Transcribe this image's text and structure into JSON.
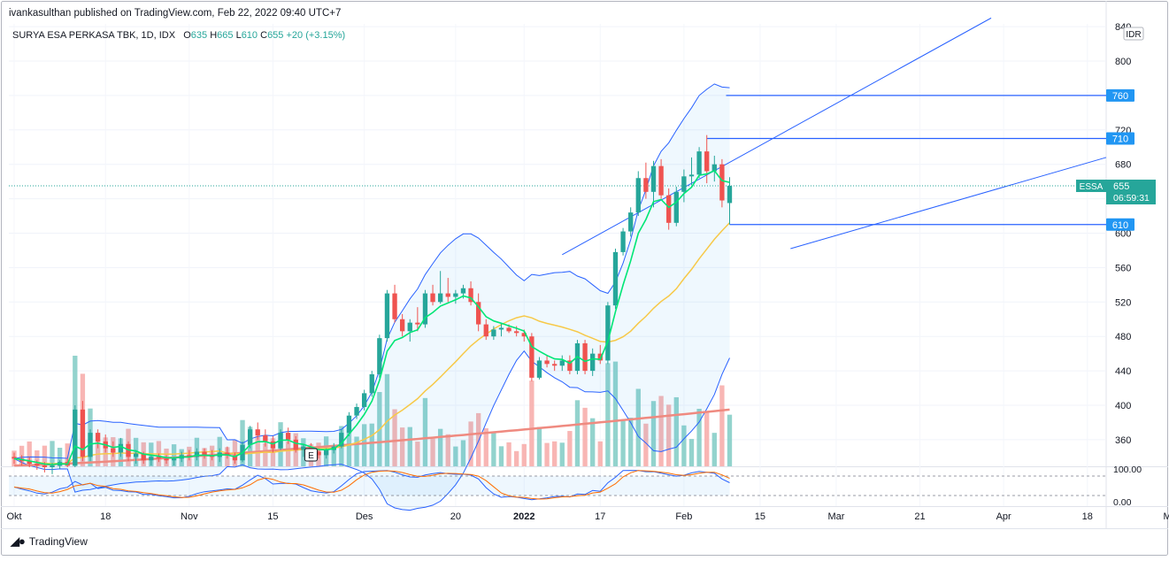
{
  "header": {
    "published": "ivankasulthan published on TradingView.com, Feb 22, 2022 09:40 UTC+7"
  },
  "legend": {
    "symbol": "SURYA ESA PERKASA TBK, 1D, IDX",
    "open_label": "O",
    "open": "635",
    "high_label": "H",
    "high": "665",
    "low_label": "L",
    "low": "610",
    "close_label": "C",
    "close": "655",
    "change": "+20 (+3.15%)"
  },
  "price_scale": {
    "currency": "IDR",
    "ticker": "ESSA",
    "last_price": "655",
    "countdown": "06:59:31",
    "levels": [
      {
        "label": "760",
        "value": 760
      },
      {
        "label": "710",
        "value": 710
      },
      {
        "label": "610",
        "value": 610
      }
    ]
  },
  "osc_scale": [
    "100.00",
    "0.00"
  ],
  "footer": {
    "brand": "TradingView"
  },
  "colors": {
    "up": "#26a69a",
    "down": "#ef5350",
    "level": "#2962ff",
    "bb": "#2962ff",
    "ema_fast": "#00e676",
    "ma_slow": "#f7c948",
    "ma_long": "#ef8a80"
  },
  "chart_data": {
    "type": "candlestick",
    "title": "SURYA ESA PERKASA TBK, 1D, IDX",
    "y_ticks": [
      840,
      800,
      760,
      720,
      680,
      640,
      600,
      560,
      520,
      480,
      440,
      400,
      360
    ],
    "x_ticks": [
      "Okt",
      "18",
      "Nov",
      "15",
      "Des",
      "20",
      "2022",
      "17",
      "Feb",
      "15",
      "Mar",
      "21",
      "Apr",
      "18",
      "Mei"
    ],
    "annotations": [
      {
        "label": "E"
      }
    ],
    "candles": [
      [
        340,
        345,
        332,
        338
      ],
      [
        338,
        342,
        330,
        335
      ],
      [
        335,
        340,
        328,
        332
      ],
      [
        332,
        336,
        325,
        330
      ],
      [
        330,
        334,
        322,
        328
      ],
      [
        328,
        333,
        320,
        330
      ],
      [
        330,
        336,
        326,
        334
      ],
      [
        334,
        338,
        328,
        330
      ],
      [
        330,
        400,
        328,
        395
      ],
      [
        395,
        405,
        335,
        340
      ],
      [
        340,
        372,
        335,
        368
      ],
      [
        368,
        372,
        350,
        358
      ],
      [
        358,
        366,
        345,
        350
      ],
      [
        350,
        358,
        340,
        345
      ],
      [
        345,
        362,
        340,
        355
      ],
      [
        355,
        358,
        335,
        340
      ],
      [
        340,
        348,
        332,
        344
      ],
      [
        344,
        346,
        332,
        336
      ],
      [
        336,
        342,
        330,
        340
      ],
      [
        340,
        344,
        334,
        338
      ],
      [
        338,
        342,
        332,
        336
      ],
      [
        336,
        340,
        330,
        338
      ],
      [
        338,
        346,
        334,
        342
      ],
      [
        342,
        348,
        336,
        340
      ],
      [
        340,
        350,
        336,
        346
      ],
      [
        346,
        350,
        338,
        342
      ],
      [
        342,
        348,
        336,
        340
      ],
      [
        340,
        350,
        334,
        345
      ],
      [
        345,
        352,
        338,
        342
      ],
      [
        342,
        345,
        332,
        336
      ],
      [
        336,
        358,
        334,
        354
      ],
      [
        354,
        376,
        350,
        372
      ],
      [
        372,
        380,
        360,
        365
      ],
      [
        365,
        372,
        352,
        358
      ],
      [
        358,
        364,
        345,
        350
      ],
      [
        350,
        372,
        348,
        368
      ],
      [
        368,
        374,
        355,
        360
      ],
      [
        360,
        364,
        345,
        348
      ],
      [
        348,
        355,
        340,
        352
      ],
      [
        352,
        356,
        342,
        346
      ],
      [
        346,
        350,
        338,
        342
      ],
      [
        342,
        350,
        338,
        348
      ],
      [
        348,
        356,
        344,
        352
      ],
      [
        352,
        372,
        350,
        368
      ],
      [
        368,
        392,
        364,
        388
      ],
      [
        388,
        402,
        384,
        398
      ],
      [
        398,
        418,
        394,
        414
      ],
      [
        414,
        440,
        410,
        436
      ],
      [
        436,
        482,
        432,
        478
      ],
      [
        478,
        534,
        474,
        530
      ],
      [
        530,
        540,
        496,
        500
      ],
      [
        500,
        506,
        480,
        486
      ],
      [
        486,
        500,
        474,
        496
      ],
      [
        496,
        514,
        486,
        494
      ],
      [
        494,
        534,
        490,
        530
      ],
      [
        530,
        540,
        516,
        520
      ],
      [
        520,
        556,
        518,
        530
      ],
      [
        530,
        548,
        520,
        526
      ],
      [
        526,
        534,
        518,
        530
      ],
      [
        530,
        540,
        524,
        536
      ],
      [
        536,
        544,
        516,
        520
      ],
      [
        520,
        530,
        486,
        494
      ],
      [
        494,
        500,
        476,
        480
      ],
      [
        480,
        492,
        476,
        488
      ],
      [
        488,
        496,
        480,
        490
      ],
      [
        490,
        494,
        484,
        486
      ],
      [
        486,
        492,
        480,
        484
      ],
      [
        484,
        488,
        474,
        480
      ],
      [
        480,
        484,
        428,
        432
      ],
      [
        432,
        456,
        430,
        452
      ],
      [
        452,
        458,
        444,
        448
      ],
      [
        448,
        452,
        440,
        446
      ],
      [
        446,
        458,
        440,
        452
      ],
      [
        452,
        458,
        436,
        440
      ],
      [
        440,
        476,
        436,
        472
      ],
      [
        472,
        476,
        436,
        440
      ],
      [
        440,
        466,
        434,
        460
      ],
      [
        460,
        470,
        448,
        452
      ],
      [
        452,
        520,
        448,
        516
      ],
      [
        516,
        582,
        512,
        578
      ],
      [
        578,
        606,
        574,
        602
      ],
      [
        602,
        630,
        596,
        624
      ],
      [
        624,
        672,
        620,
        664
      ],
      [
        664,
        682,
        640,
        648
      ],
      [
        648,
        684,
        630,
        678
      ],
      [
        678,
        686,
        640,
        644
      ],
      [
        644,
        652,
        604,
        612
      ],
      [
        612,
        654,
        608,
        648
      ],
      [
        648,
        674,
        636,
        666
      ],
      [
        666,
        688,
        656,
        668
      ],
      [
        668,
        700,
        664,
        695
      ],
      [
        695,
        714,
        658,
        672
      ],
      [
        672,
        690,
        660,
        680
      ],
      [
        680,
        686,
        630,
        638
      ],
      [
        635,
        665,
        610,
        655
      ]
    ]
  }
}
